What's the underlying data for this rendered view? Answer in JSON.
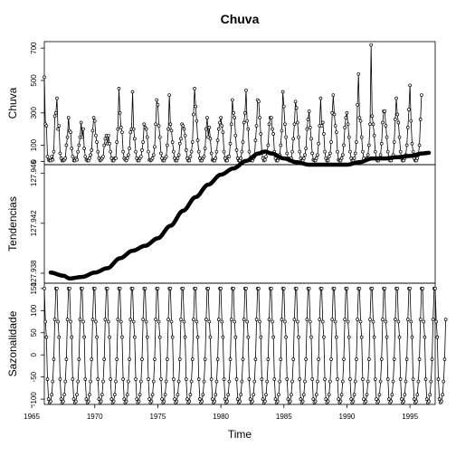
{
  "chart_data": {
    "type": "line",
    "title": "Chuva",
    "xlabel": "Time",
    "xlim": [
      1966,
      1997
    ],
    "x_ticks": [
      "1965",
      "1970",
      "1975",
      "1980",
      "1985",
      "1990",
      "1995"
    ],
    "panels": [
      {
        "name": "Chuva",
        "ylabel": "Chuva",
        "ylim": [
          -20,
          740
        ],
        "y_ticks": [
          "0",
          "100",
          "300",
          "500",
          "700"
        ],
        "markers": true,
        "series_start": 1966.0,
        "frequency": 12,
        "values": [
          520,
          230,
          220,
          30,
          10,
          5,
          5,
          30,
          10,
          60,
          280,
          300,
          390,
          200,
          220,
          50,
          20,
          5,
          5,
          10,
          20,
          100,
          150,
          270,
          190,
          180,
          80,
          30,
          5,
          5,
          20,
          10,
          60,
          100,
          150,
          240,
          150,
          200,
          80,
          30,
          10,
          5,
          5,
          20,
          40,
          70,
          190,
          270,
          250,
          160,
          120,
          60,
          20,
          5,
          10,
          20,
          30,
          100,
          140,
          160,
          110,
          160,
          110,
          60,
          20,
          5,
          5,
          20,
          20,
          120,
          200,
          450,
          300,
          210,
          180,
          60,
          20,
          10,
          5,
          20,
          40,
          80,
          180,
          200,
          430,
          200,
          140,
          60,
          20,
          5,
          5,
          20,
          30,
          70,
          120,
          230,
          210,
          200,
          150,
          60,
          10,
          5,
          10,
          20,
          40,
          90,
          230,
          380,
          350,
          220,
          150,
          50,
          20,
          5,
          5,
          20,
          30,
          100,
          200,
          410,
          230,
          190,
          120,
          60,
          20,
          5,
          5,
          20,
          40,
          110,
          140,
          230,
          220,
          200,
          160,
          70,
          20,
          5,
          5,
          30,
          60,
          120,
          290,
          450,
          340,
          250,
          130,
          60,
          20,
          5,
          5,
          20,
          30,
          80,
          200,
          270,
          150,
          210,
          140,
          50,
          10,
          5,
          5,
          20,
          60,
          130,
          200,
          240,
          270,
          220,
          180,
          60,
          20,
          5,
          5,
          30,
          30,
          110,
          230,
          380,
          300,
          270,
          160,
          70,
          20,
          5,
          5,
          20,
          60,
          120,
          240,
          300,
          440,
          250,
          200,
          60,
          20,
          5,
          5,
          20,
          30,
          130,
          220,
          380,
          370,
          270,
          170,
          60,
          20,
          5,
          10,
          30,
          60,
          100,
          230,
          270,
          270,
          200,
          170,
          60,
          20,
          5,
          5,
          20,
          40,
          100,
          190,
          430,
          340,
          230,
          150,
          50,
          20,
          5,
          5,
          20,
          60,
          140,
          230,
          370,
          330,
          240,
          150,
          60,
          20,
          5,
          5,
          20,
          40,
          80,
          200,
          260,
          310,
          210,
          140,
          50,
          10,
          5,
          5,
          20,
          40,
          110,
          220,
          390,
          220,
          240,
          170,
          60,
          20,
          5,
          5,
          30,
          50,
          120,
          300,
          410,
          290,
          220,
          180,
          60,
          10,
          5,
          5,
          20,
          40,
          100,
          210,
          270,
          300,
          230,
          150,
          60,
          20,
          5,
          5,
          20,
          50,
          120,
          350,
          540,
          270,
          250,
          150,
          60,
          20,
          5,
          5,
          20,
          40,
          100,
          230,
          720,
          280,
          230,
          160,
          60,
          20,
          5,
          5,
          20,
          40,
          110,
          240,
          310,
          310,
          220,
          150,
          60,
          20,
          5,
          5,
          20,
          40,
          120,
          260,
          390,
          290,
          240,
          150,
          60,
          20,
          5,
          5,
          20,
          40,
          100,
          210,
          320,
          470,
          250,
          110,
          60,
          20,
          5,
          5,
          20,
          40,
          100,
          260,
          410
        ]
      },
      {
        "name": "Tendencias",
        "ylabel": "Tendencias",
        "ylim": [
          127.9372,
          127.9467
        ],
        "y_ticks": [
          "127.938",
          "127.942",
          "127.946"
        ],
        "markers": false,
        "x_start": 1966.5,
        "x_end": 1996.5,
        "knots": [
          [
            1966.5,
            127.93805
          ],
          [
            1967.5,
            127.9378
          ],
          [
            1968.0,
            127.93758
          ],
          [
            1969.0,
            127.9377
          ],
          [
            1970.0,
            127.93805
          ],
          [
            1971.0,
            127.9384
          ],
          [
            1972.0,
            127.9392
          ],
          [
            1973.0,
            127.9398
          ],
          [
            1974.0,
            127.9402
          ],
          [
            1975.0,
            127.9408
          ],
          [
            1976.0,
            127.9418
          ],
          [
            1977.0,
            127.943
          ],
          [
            1978.0,
            127.9441
          ],
          [
            1979.0,
            127.9451
          ],
          [
            1980.0,
            127.9459
          ],
          [
            1981.0,
            127.9464
          ],
          [
            1982.0,
            127.947
          ],
          [
            1983.0,
            127.9476
          ],
          [
            1983.5,
            127.94775
          ],
          [
            1984.0,
            127.9476
          ],
          [
            1985.0,
            127.9472
          ],
          [
            1986.0,
            127.9469
          ],
          [
            1987.0,
            127.9467
          ],
          [
            1988.0,
            127.9467
          ],
          [
            1989.0,
            127.9467
          ],
          [
            1990.0,
            127.9467
          ],
          [
            1991.0,
            127.9469
          ],
          [
            1992.0,
            127.9472
          ],
          [
            1993.0,
            127.9472
          ],
          [
            1994.0,
            127.9473
          ],
          [
            1995.0,
            127.9474
          ],
          [
            1996.0,
            127.9476
          ],
          [
            1996.5,
            127.94765
          ]
        ]
      },
      {
        "name": "Sazonalidade",
        "ylabel": "Sazonalidade",
        "ylim": [
          -112,
          162
        ],
        "y_ticks": [
          "-100",
          "-50",
          "0",
          "50",
          "100",
          "150"
        ],
        "markers": true,
        "series_start": 1966.0,
        "frequency": 12,
        "pattern": [
          150,
          75,
          40,
          -55,
          -100,
          -108,
          -105,
          -90,
          -60,
          -10,
          80,
          150
        ],
        "cycles": 31,
        "tail": [
          150,
          75,
          40,
          -55,
          -100,
          -108,
          -105,
          -90,
          -60,
          -10,
          80
        ]
      }
    ]
  }
}
